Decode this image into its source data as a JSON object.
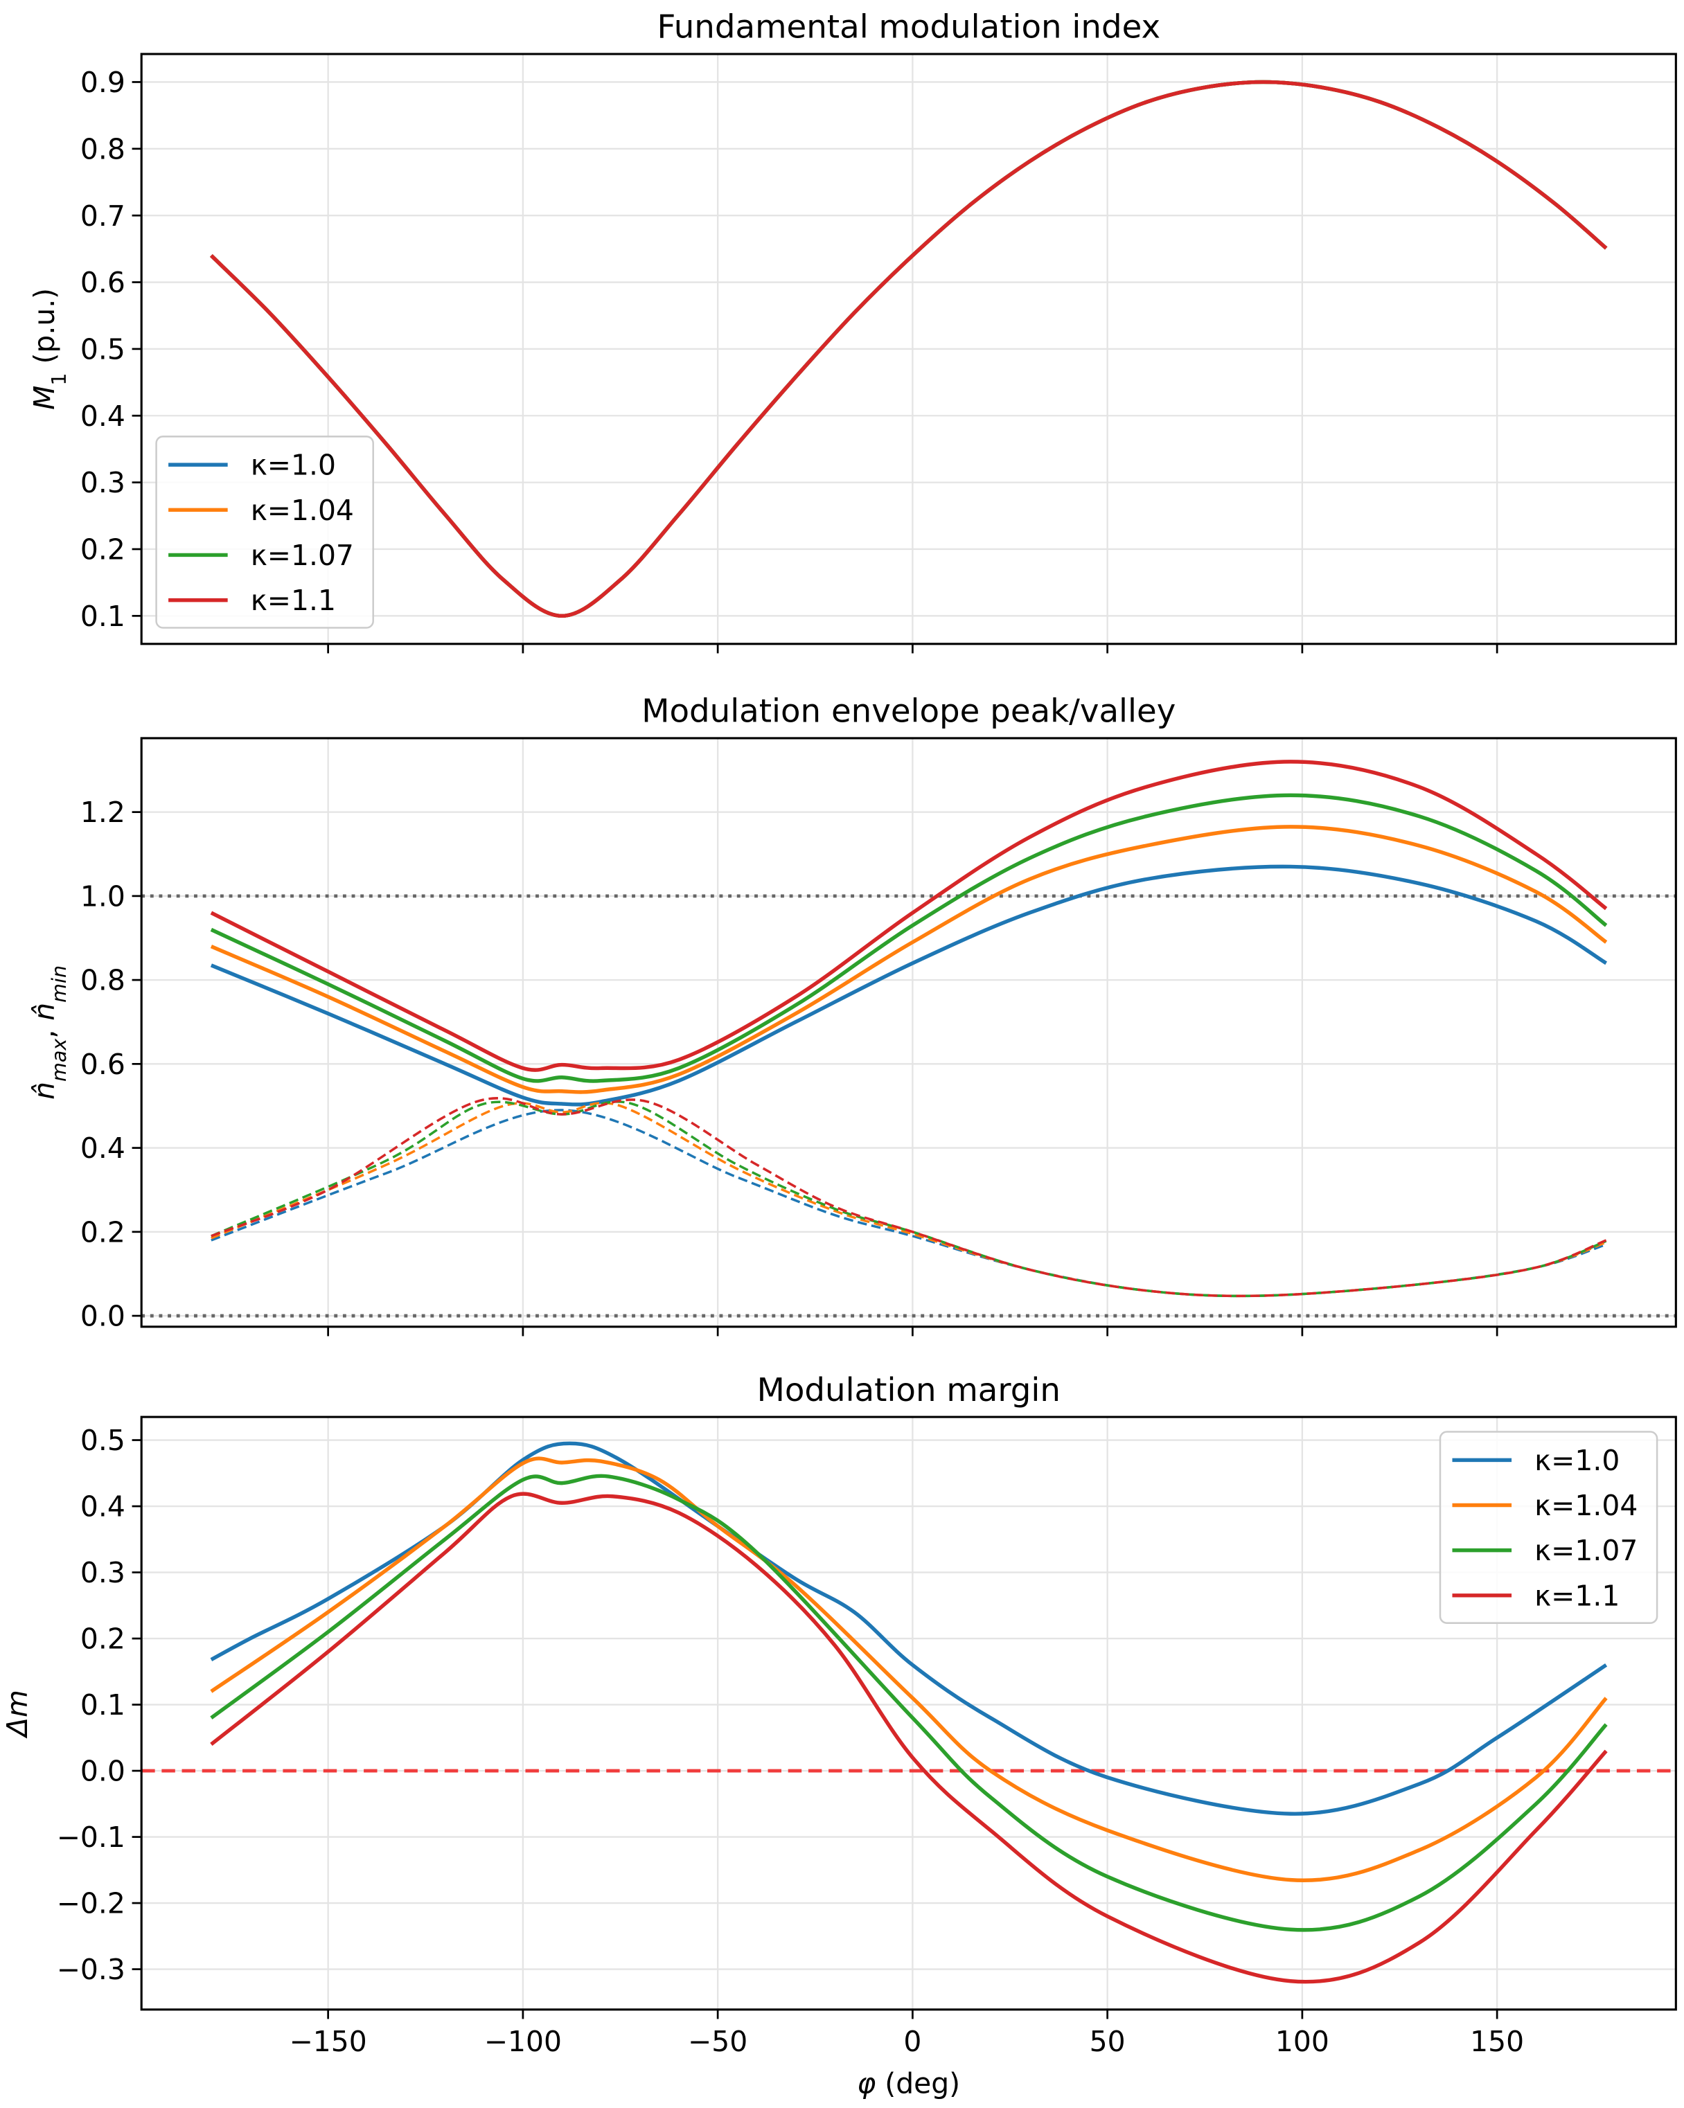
{
  "chart_data": [
    {
      "type": "line",
      "title": "Fundamental modulation index",
      "ylabel_parts": [
        {
          "t": "M",
          "i": true
        },
        {
          "t": "1",
          "sub": true
        },
        {
          "t": " (p.u.)"
        }
      ],
      "xlim": [
        -197.9,
        195.9
      ],
      "ylim": [
        0.058,
        0.942
      ],
      "yticks": [
        0.1,
        0.2,
        0.3,
        0.4,
        0.5,
        0.6,
        0.7,
        0.8,
        0.9
      ],
      "ytick_labels": [
        "0.1",
        "0.2",
        "0.3",
        "0.4",
        "0.5",
        "0.6",
        "0.7",
        "0.8",
        "0.9"
      ],
      "grid": true,
      "legend": "lower-left",
      "x": [
        -180,
        -165,
        -150,
        -135,
        -120,
        -105,
        -90,
        -75,
        -60,
        -45,
        -30,
        -15,
        0,
        15,
        30,
        45,
        60,
        75,
        90,
        105,
        120,
        135,
        150,
        165,
        178
      ],
      "series": [
        {
          "name": "κ=1.0",
          "color": "#1f77b4",
          "values": [
            0.64,
            0.554,
            0.458,
            0.357,
            0.252,
            0.154,
            0.1,
            0.154,
            0.252,
            0.357,
            0.458,
            0.554,
            0.64,
            0.717,
            0.781,
            0.832,
            0.87,
            0.892,
            0.9,
            0.892,
            0.87,
            0.832,
            0.781,
            0.717,
            0.651
          ]
        },
        {
          "name": "κ=1.04",
          "color": "#ff7f0e",
          "values": [
            0.64,
            0.554,
            0.458,
            0.357,
            0.252,
            0.154,
            0.1,
            0.154,
            0.252,
            0.357,
            0.458,
            0.554,
            0.64,
            0.717,
            0.781,
            0.832,
            0.87,
            0.892,
            0.9,
            0.892,
            0.87,
            0.832,
            0.781,
            0.717,
            0.651
          ]
        },
        {
          "name": "κ=1.07",
          "color": "#2ca02c",
          "values": [
            0.64,
            0.554,
            0.458,
            0.357,
            0.252,
            0.154,
            0.1,
            0.154,
            0.252,
            0.357,
            0.458,
            0.554,
            0.64,
            0.717,
            0.781,
            0.832,
            0.87,
            0.892,
            0.9,
            0.892,
            0.87,
            0.832,
            0.781,
            0.717,
            0.651
          ]
        },
        {
          "name": "κ=1.1",
          "color": "#d62728",
          "values": [
            0.64,
            0.554,
            0.458,
            0.357,
            0.252,
            0.154,
            0.1,
            0.154,
            0.252,
            0.357,
            0.458,
            0.554,
            0.64,
            0.717,
            0.781,
            0.832,
            0.87,
            0.892,
            0.9,
            0.892,
            0.87,
            0.832,
            0.781,
            0.717,
            0.651
          ]
        }
      ]
    },
    {
      "type": "line",
      "title": "Modulation envelope peak/valley",
      "ylabel_parts": [
        {
          "t": "n̂",
          "i": true
        },
        {
          "t": "max",
          "sub": true,
          "i": true
        },
        {
          "t": ", "
        },
        {
          "t": "n̂",
          "i": true
        },
        {
          "t": "min",
          "sub": true,
          "i": true
        }
      ],
      "xlim": [
        -197.9,
        195.9
      ],
      "ylim": [
        -0.026,
        1.376
      ],
      "yticks": [
        0.0,
        0.2,
        0.4,
        0.6,
        0.8,
        1.0,
        1.2
      ],
      "ytick_labels": [
        "0.0",
        "0.2",
        "0.4",
        "0.6",
        "0.8",
        "1.0",
        "1.2"
      ],
      "grid": true,
      "reference_lines": [
        {
          "y": 1.0,
          "style": "dotted",
          "color": "#666666"
        },
        {
          "y": 0.0,
          "style": "dotted",
          "color": "#666666"
        }
      ],
      "series": [
        {
          "name": "κ=1.0 max",
          "color": "#1f77b4",
          "style": "solid",
          "x": [
            -180,
            -150,
            -120,
            -100,
            -90,
            -80,
            -60,
            -30,
            0,
            30,
            60,
            97,
            130,
            160,
            178
          ],
          "values": [
            0.835,
            0.72,
            0.6,
            0.52,
            0.505,
            0.51,
            0.56,
            0.7,
            0.84,
            0.96,
            1.04,
            1.07,
            1.03,
            0.94,
            0.84
          ]
        },
        {
          "name": "κ=1.04 max",
          "color": "#ff7f0e",
          "style": "solid",
          "x": [
            -180,
            -150,
            -120,
            -100,
            -90,
            -80,
            -60,
            -30,
            0,
            30,
            60,
            97,
            130,
            160,
            178
          ],
          "values": [
            0.88,
            0.76,
            0.63,
            0.545,
            0.535,
            0.537,
            0.575,
            0.72,
            0.89,
            1.04,
            1.12,
            1.165,
            1.12,
            1.01,
            0.89
          ]
        },
        {
          "name": "κ=1.07 max",
          "color": "#2ca02c",
          "style": "solid",
          "x": [
            -180,
            -150,
            -120,
            -100,
            -90,
            -80,
            -60,
            -30,
            0,
            30,
            60,
            97,
            130,
            160,
            178
          ],
          "values": [
            0.92,
            0.79,
            0.655,
            0.565,
            0.568,
            0.56,
            0.59,
            0.74,
            0.93,
            1.09,
            1.19,
            1.24,
            1.19,
            1.06,
            0.93
          ]
        },
        {
          "name": "κ=1.1 max",
          "color": "#d62728",
          "style": "solid",
          "x": [
            -180,
            -150,
            -120,
            -100,
            -90,
            -80,
            -60,
            -30,
            0,
            30,
            60,
            97,
            130,
            160,
            178
          ],
          "values": [
            0.96,
            0.82,
            0.68,
            0.59,
            0.598,
            0.59,
            0.61,
            0.76,
            0.96,
            1.14,
            1.26,
            1.32,
            1.26,
            1.1,
            0.97
          ]
        },
        {
          "name": "κ=1.0 min",
          "color": "#1f77b4",
          "style": "dashed",
          "x": [
            -180,
            -135,
            -90,
            -45,
            -20,
            0,
            30,
            60,
            90,
            130,
            160,
            178
          ],
          "values": [
            0.18,
            0.34,
            0.49,
            0.33,
            0.24,
            0.19,
            0.11,
            0.06,
            0.048,
            0.075,
            0.115,
            0.17
          ]
        },
        {
          "name": "κ=1.04 min",
          "color": "#ff7f0e",
          "style": "dashed",
          "x": [
            -180,
            -135,
            -105,
            -90,
            -75,
            -45,
            -20,
            0,
            30,
            60,
            90,
            130,
            160,
            178
          ],
          "values": [
            0.185,
            0.36,
            0.5,
            0.485,
            0.5,
            0.35,
            0.25,
            0.195,
            0.11,
            0.06,
            0.048,
            0.075,
            0.115,
            0.175
          ]
        },
        {
          "name": "κ=1.07 min",
          "color": "#2ca02c",
          "style": "dashed",
          "x": [
            -180,
            -135,
            -110,
            -90,
            -72,
            -45,
            -20,
            0,
            30,
            60,
            90,
            130,
            160,
            178
          ],
          "values": [
            0.19,
            0.37,
            0.505,
            0.48,
            0.505,
            0.36,
            0.255,
            0.2,
            0.11,
            0.06,
            0.048,
            0.075,
            0.115,
            0.178
          ]
        },
        {
          "name": "κ=1.1 min",
          "color": "#d62728",
          "style": "dashed",
          "x": [
            -180,
            -150,
            -112,
            -90,
            -68,
            -40,
            -20,
            0,
            30,
            60,
            90,
            130,
            160,
            178
          ],
          "values": [
            0.19,
            0.3,
            0.51,
            0.48,
            0.51,
            0.36,
            0.26,
            0.2,
            0.11,
            0.06,
            0.048,
            0.075,
            0.115,
            0.18
          ]
        }
      ]
    },
    {
      "type": "line",
      "title": "Modulation margin",
      "ylabel_parts": [
        {
          "t": "Δm",
          "i": true
        }
      ],
      "xlabel_parts": [
        {
          "t": "φ",
          "i": true
        },
        {
          "t": " (deg)"
        }
      ],
      "xlim": [
        -197.9,
        195.9
      ],
      "ylim": [
        -0.361,
        0.535
      ],
      "xticks": [
        -150,
        -100,
        -50,
        0,
        50,
        100,
        150
      ],
      "xtick_labels": [
        "−150",
        "−100",
        "−50",
        "0",
        "50",
        "100",
        "150"
      ],
      "yticks": [
        -0.3,
        -0.2,
        -0.1,
        0.0,
        0.1,
        0.2,
        0.3,
        0.4,
        0.5
      ],
      "ytick_labels": [
        "−0.3",
        "−0.2",
        "−0.1",
        "0.0",
        "0.1",
        "0.2",
        "0.3",
        "0.4",
        "0.5"
      ],
      "grid": true,
      "legend": "upper-right",
      "reference_lines": [
        {
          "y": 0.0,
          "style": "dashed",
          "color": "#f03c3c"
        }
      ],
      "series": [
        {
          "name": "κ=1.0",
          "color": "#1f77b4",
          "x": [
            -180,
            -170,
            -150,
            -120,
            -100,
            -88,
            -75,
            -50,
            -30,
            -15,
            0,
            20,
            50,
            97,
            130,
            150,
            178
          ],
          "values": [
            0.168,
            0.2,
            0.26,
            0.37,
            0.47,
            0.495,
            0.47,
            0.37,
            0.29,
            0.24,
            0.16,
            0.08,
            -0.01,
            -0.065,
            -0.02,
            0.05,
            0.16
          ]
        },
        {
          "name": "κ=1.04",
          "color": "#ff7f0e",
          "x": [
            -180,
            -150,
            -120,
            -100,
            -90,
            -80,
            -65,
            -50,
            -30,
            0,
            20,
            50,
            97,
            130,
            160,
            178
          ],
          "values": [
            0.12,
            0.24,
            0.37,
            0.465,
            0.466,
            0.468,
            0.44,
            0.37,
            0.28,
            0.11,
            0.0,
            -0.09,
            -0.165,
            -0.12,
            -0.01,
            0.11
          ]
        },
        {
          "name": "κ=1.07",
          "color": "#2ca02c",
          "x": [
            -180,
            -150,
            -120,
            -100,
            -90,
            -78,
            -60,
            -40,
            0,
            20,
            50,
            97,
            130,
            160,
            178
          ],
          "values": [
            0.08,
            0.21,
            0.35,
            0.44,
            0.435,
            0.445,
            0.41,
            0.33,
            0.08,
            -0.04,
            -0.16,
            -0.24,
            -0.19,
            -0.05,
            0.07
          ]
        },
        {
          "name": "κ=1.1",
          "color": "#d62728",
          "x": [
            -180,
            -150,
            -120,
            -103,
            -90,
            -77,
            -60,
            -40,
            -20,
            0,
            20,
            50,
            97,
            130,
            160,
            178
          ],
          "values": [
            0.04,
            0.18,
            0.33,
            0.415,
            0.405,
            0.415,
            0.39,
            0.31,
            0.19,
            0.02,
            -0.09,
            -0.22,
            -0.318,
            -0.26,
            -0.09,
            0.03
          ]
        }
      ]
    }
  ]
}
